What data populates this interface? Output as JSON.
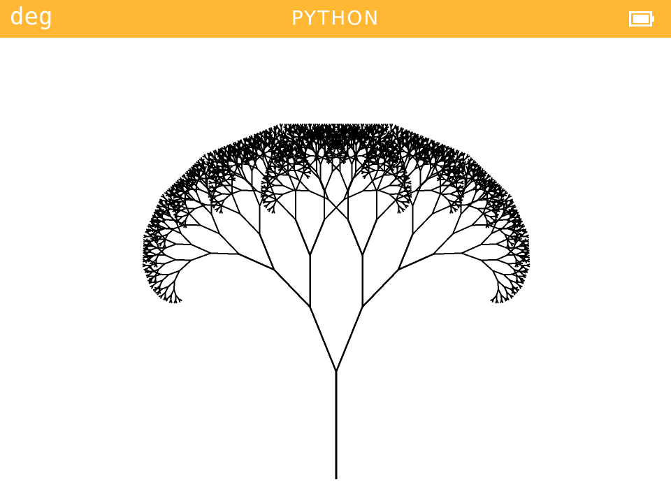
{
  "status_bar": {
    "angle_mode": "deg",
    "title": "PYTHON",
    "battery_icon": "battery-full-icon",
    "background_color": "#FFB734",
    "text_color": "#FFFFFF"
  },
  "canvas": {
    "drawing": "fractal-tree",
    "background_color": "#FFFFFF",
    "stroke_color": "#000000"
  }
}
